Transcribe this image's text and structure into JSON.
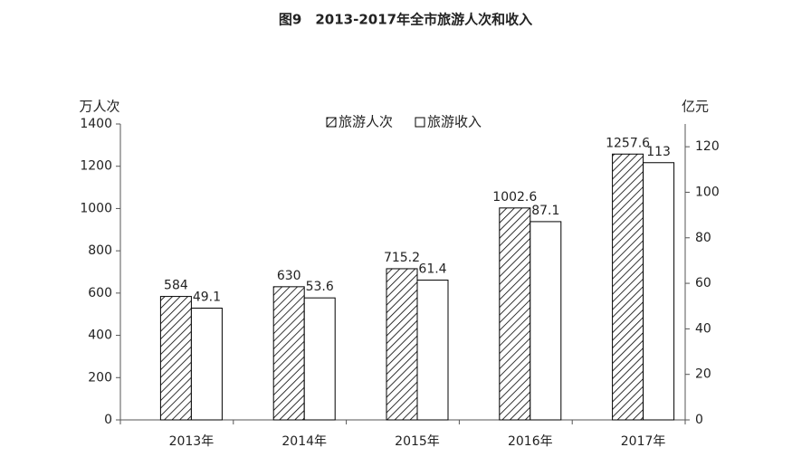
{
  "chart_data": {
    "type": "bar",
    "title": "图9　2013-2017年全市旅游人次和收入",
    "ylabel": "万人次",
    "y2label": "亿元",
    "categories": [
      "2013年",
      "2014年",
      "2015年",
      "2016年",
      "2017年"
    ],
    "series": [
      {
        "name": "旅游人次",
        "color": "#000000",
        "values": [
          584,
          630,
          715.2,
          1002.6,
          1257.6
        ]
      },
      {
        "name": "旅游收入",
        "color": "#ffffff",
        "axis": "y2",
        "values": [
          49.1,
          53.6,
          61.4,
          87.1,
          113
        ]
      }
    ],
    "ylim": [
      0,
      1400
    ],
    "yticks": [
      0,
      200,
      400,
      600,
      800,
      1000,
      1200,
      1400
    ],
    "y2lim": [
      0,
      130
    ],
    "y2ticks": [
      0,
      20,
      40,
      60,
      80,
      100,
      120
    ],
    "grid": false
  }
}
